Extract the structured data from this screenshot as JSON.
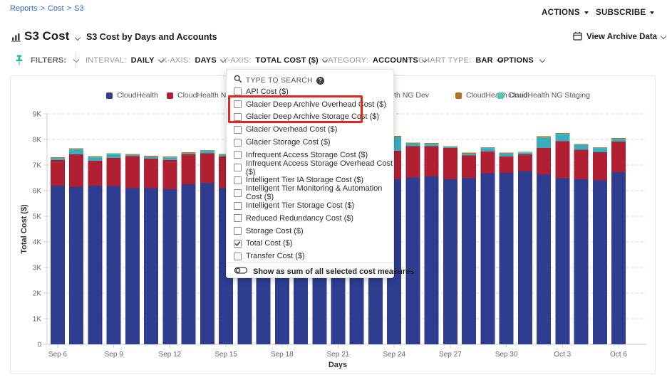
{
  "breadcrumb": {
    "items": [
      "Reports",
      "Cost",
      "S3"
    ],
    "separator": ">"
  },
  "header": {
    "actions_label": "ACTIONS",
    "subscribe_label": "SUBSCRIBE"
  },
  "title_bar": {
    "title": "S3 Cost",
    "subtitle": "S3 Cost by Days and Accounts",
    "view_archive_label": "View Archive Data"
  },
  "toolbar": {
    "filters_label": "FILTERS:",
    "controls": [
      {
        "label": "INTERVAL:",
        "value": "DAILY"
      },
      {
        "label": "X-AXIS:",
        "value": "DAYS"
      },
      {
        "label": "Y-AXIS:",
        "value": "TOTAL COST ($)"
      },
      {
        "label": "CATEGORY:",
        "value": "ACCOUNTS"
      },
      {
        "label": "CHART TYPE:",
        "value": "BAR"
      }
    ],
    "options_label": "OPTIONS"
  },
  "dropdown": {
    "search_placeholder": "TYPE TO SEARCH",
    "help_glyph": "?",
    "items": [
      {
        "label": "API Cost ($)",
        "checked": false,
        "highlighted": false
      },
      {
        "label": "Glacier Deep Archive Overhead Cost ($)",
        "checked": false,
        "highlighted": true
      },
      {
        "label": "Glacier Deep Archive Storage Cost ($)",
        "checked": false,
        "highlighted": true
      },
      {
        "label": "Glacier Overhead Cost ($)",
        "checked": false,
        "highlighted": false
      },
      {
        "label": "Glacier Storage Cost ($)",
        "checked": false,
        "highlighted": false
      },
      {
        "label": "Infrequent Access Storage Cost ($)",
        "checked": false,
        "highlighted": false
      },
      {
        "label": "Infrequent Access Storage Overhead Cost ($)",
        "checked": false,
        "highlighted": false
      },
      {
        "label": "Intelligent Tier IA Storage Cost ($)",
        "checked": false,
        "highlighted": false
      },
      {
        "label": "Intelligent Tier Monitoring & Automation Cost ($)",
        "checked": false,
        "highlighted": false
      },
      {
        "label": "Intelligent Tier Storage Cost ($)",
        "checked": false,
        "highlighted": false
      },
      {
        "label": "Reduced Redundancy Cost ($)",
        "checked": false,
        "highlighted": false
      },
      {
        "label": "Storage Cost ($)",
        "checked": false,
        "highlighted": false
      },
      {
        "label": "Total Cost ($)",
        "checked": true,
        "highlighted": false
      },
      {
        "label": "Transfer Cost ($)",
        "checked": false,
        "highlighted": false
      }
    ],
    "footer_toggle_label": "Show as sum of all selected cost measures",
    "highlight_color": "#e8251d"
  },
  "chart_data": {
    "type": "bar",
    "stacked": true,
    "title": "",
    "xlabel": "Days",
    "ylabel": "Total Cost ($)",
    "ylim": [
      0,
      9000
    ],
    "ytick_labels": [
      "0",
      "1K",
      "2K",
      "3K",
      "4K",
      "5K",
      "6K",
      "7K",
      "8K",
      "9K"
    ],
    "x_tick_every": 3,
    "grid": "dashed-horizontal",
    "legend_position": "top",
    "legend_order": [
      0,
      1,
      2,
      4,
      3
    ],
    "categories": [
      "Sep 6",
      "Sep 7",
      "Sep 8",
      "Sep 9",
      "Sep 10",
      "Sep 11",
      "Sep 12",
      "Sep 13",
      "Sep 14",
      "Sep 15",
      "Sep 16",
      "Sep 17",
      "Sep 18",
      "Sep 19",
      "Sep 20",
      "Sep 21",
      "Sep 22",
      "Sep 23",
      "Sep 24",
      "Sep 25",
      "Sep 26",
      "Sep 27",
      "Sep 28",
      "Sep 29",
      "Sep 30",
      "Oct 1",
      "Oct 2",
      "Oct 3",
      "Oct 4",
      "Oct 5",
      "Oct 6"
    ],
    "series": [
      {
        "name": "CloudHealth",
        "color": "#2e3d90",
        "values": [
          6200,
          6150,
          6200,
          6180,
          6100,
          6100,
          6050,
          6250,
          6300,
          6100,
          6150,
          6200,
          6150,
          6100,
          6200,
          6250,
          6300,
          6400,
          6450,
          6520,
          6550,
          6440,
          6480,
          6680,
          6700,
          6770,
          6640,
          6490,
          6450,
          6400,
          6720
        ]
      },
      {
        "name": "CloudHealth NG Prod",
        "color": "#b02032",
        "values": [
          1000,
          1270,
          970,
          1100,
          1250,
          1150,
          1150,
          1170,
          1160,
          1230,
          1180,
          1130,
          1200,
          1160,
          1180,
          1160,
          1180,
          1170,
          1110,
          1210,
          1180,
          1220,
          890,
          850,
          640,
          650,
          1030,
          1440,
          1150,
          1100,
          1200
        ]
      },
      {
        "name": "CloudHealth NG Dev",
        "color": "#3aacc0",
        "values": [
          60,
          180,
          130,
          140,
          40,
          70,
          90,
          20,
          90,
          60,
          70,
          80,
          60,
          80,
          60,
          70,
          60,
          60,
          520,
          100,
          80,
          40,
          60,
          130,
          100,
          60,
          400,
          260,
          180,
          160,
          90
        ]
      },
      {
        "name": "CloudHealth NG Staging",
        "color": "#57c9b3",
        "values": [
          20,
          20,
          20,
          20,
          20,
          20,
          20,
          20,
          20,
          20,
          20,
          20,
          20,
          20,
          20,
          20,
          20,
          10,
          20,
          20,
          20,
          20,
          20,
          20,
          20,
          20,
          20,
          30,
          20,
          20,
          20
        ]
      },
      {
        "name": "CloudHealth Druid",
        "color": "#b4701e",
        "values": [
          20,
          30,
          30,
          20,
          20,
          20,
          20,
          40,
          20,
          20,
          20,
          20,
          20,
          20,
          20,
          20,
          20,
          20,
          40,
          30,
          30,
          20,
          30,
          20,
          20,
          20,
          30,
          30,
          20,
          20,
          20
        ]
      }
    ]
  }
}
